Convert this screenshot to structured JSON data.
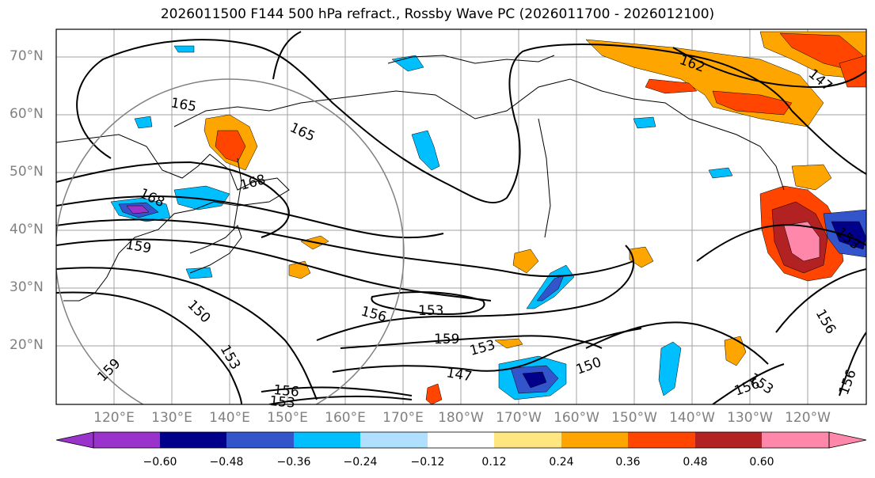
{
  "title": "2026011500 F144 500 hPa refract., Rossby Wave PC (2026011700 - 2026012100)",
  "lat_labels": [
    "70°N",
    "60°N",
    "50°N",
    "40°N",
    "30°N",
    "20°N"
  ],
  "lon_labels": [
    "120°E",
    "130°E",
    "140°E",
    "150°E",
    "160°E",
    "170°E",
    "180°W",
    "170°W",
    "160°W",
    "150°W",
    "140°W",
    "130°W",
    "120°W"
  ],
  "colorbar": {
    "ticks": [
      "−0.60",
      "−0.48",
      "−0.36",
      "−0.24",
      "−0.12",
      "0.12",
      "0.24",
      "0.36",
      "0.48",
      "0.60"
    ],
    "colors": [
      "#9933cc",
      "#00008b",
      "#3355cc",
      "#00bfff",
      "#b0e0ff",
      "#ffffff",
      "#ffe680",
      "#ffa500",
      "#ff4500",
      "#b22222",
      "#ff88aa"
    ]
  },
  "contour_labels": [
    "165",
    "165",
    "168",
    "168",
    "159",
    "150",
    "153",
    "156",
    "153",
    "159",
    "153",
    "147",
    "150",
    "156",
    "153",
    "156",
    "162",
    "156",
    "153",
    "147",
    "156",
    "159",
    "153"
  ]
}
